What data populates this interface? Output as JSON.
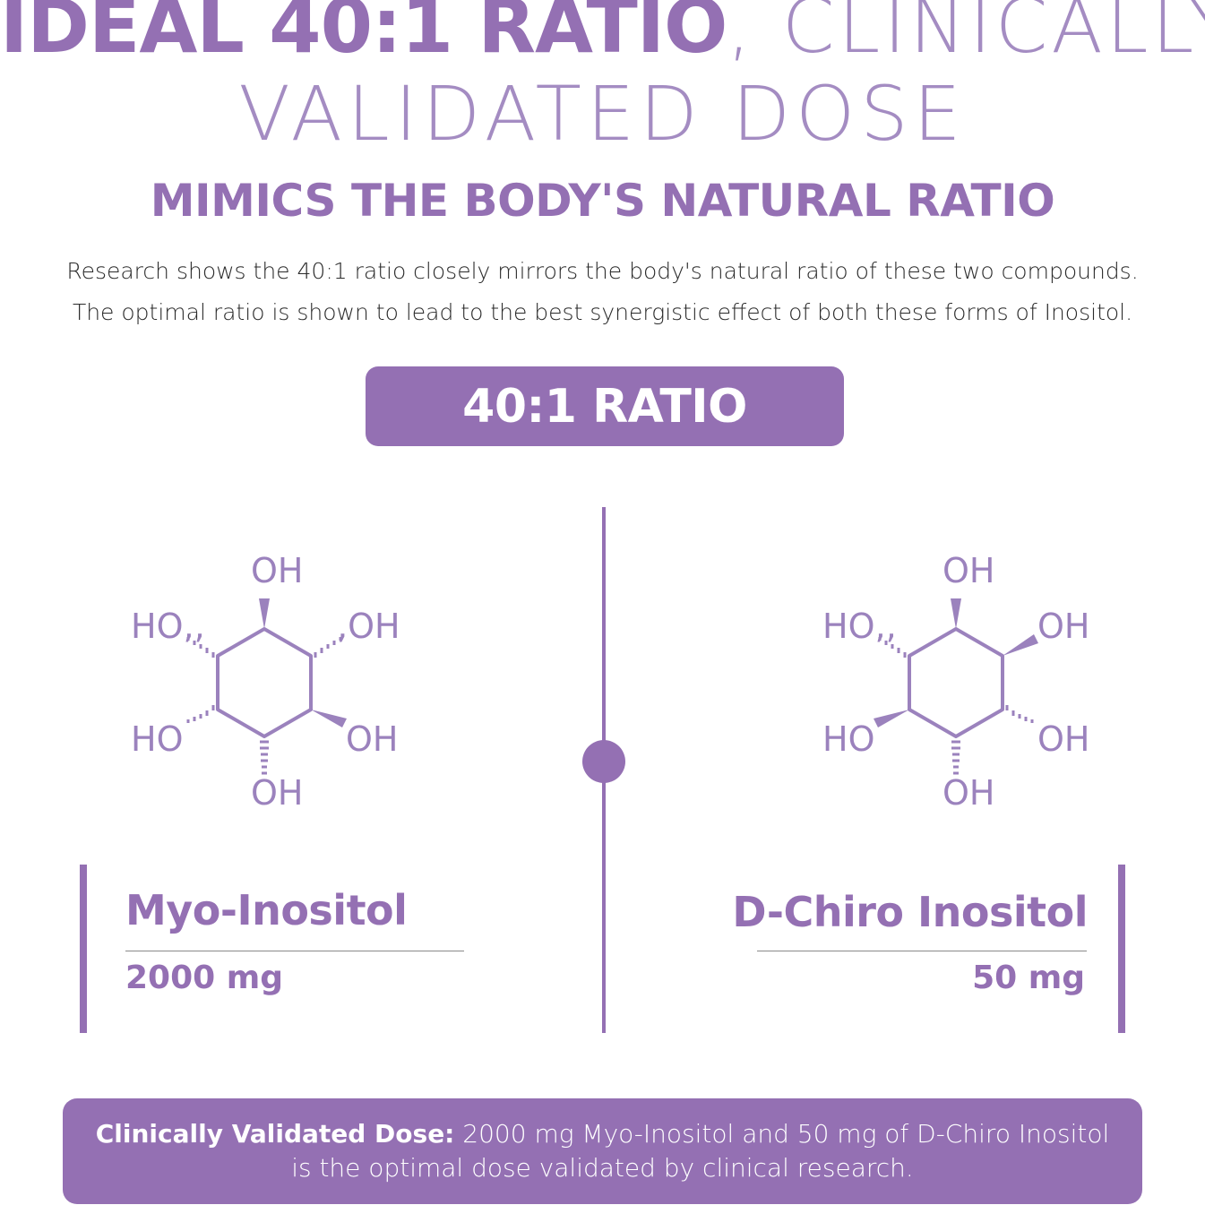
{
  "header": {
    "title_bold": "IDEAL 40:1 RATIO",
    "title_light_1": ", CLINICALLY",
    "title_light_2": "VALIDATED DOSE",
    "subtitle": "MIMICS THE BODY'S NATURAL RATIO",
    "description_line1": "Research shows the 40:1 ratio closely mirrors the body's natural ratio of these two compounds.",
    "description_line2": "The optimal ratio is shown to lead to the best synergistic effect of both these forms of Inositol."
  },
  "ratio_badge": "40:1 RATIO",
  "compounds": [
    {
      "name": "Myo-Inositol",
      "dose": "2000 mg",
      "labels": {
        "top": "OH",
        "upper_left": "HO,,",
        "upper_right": ",OH",
        "lower_left": "HO",
        "lower_right": "OH",
        "bottom": "OH"
      }
    },
    {
      "name": "D-Chiro Inositol",
      "dose": "50 mg",
      "labels": {
        "top": "OH",
        "upper_left": "HO,,",
        "upper_right": "OH",
        "lower_left": "HO",
        "lower_right": "OH",
        "bottom": "OH"
      }
    }
  ],
  "footer": {
    "strong": "Clinically Validated Dose:",
    "line1_rest": " 2000 mg Myo-Inositol and 50 mg of D-Chiro Inositol",
    "line2": "is the optimal dose validated by clinical research."
  },
  "colors": {
    "accent": "#9470b3",
    "accent_light": "#a48cc2",
    "text_dark": "#2b2b2b",
    "white": "#ffffff"
  },
  "icons": [
    "myo-inositol-structure-icon",
    "d-chiro-inositol-structure-icon"
  ]
}
